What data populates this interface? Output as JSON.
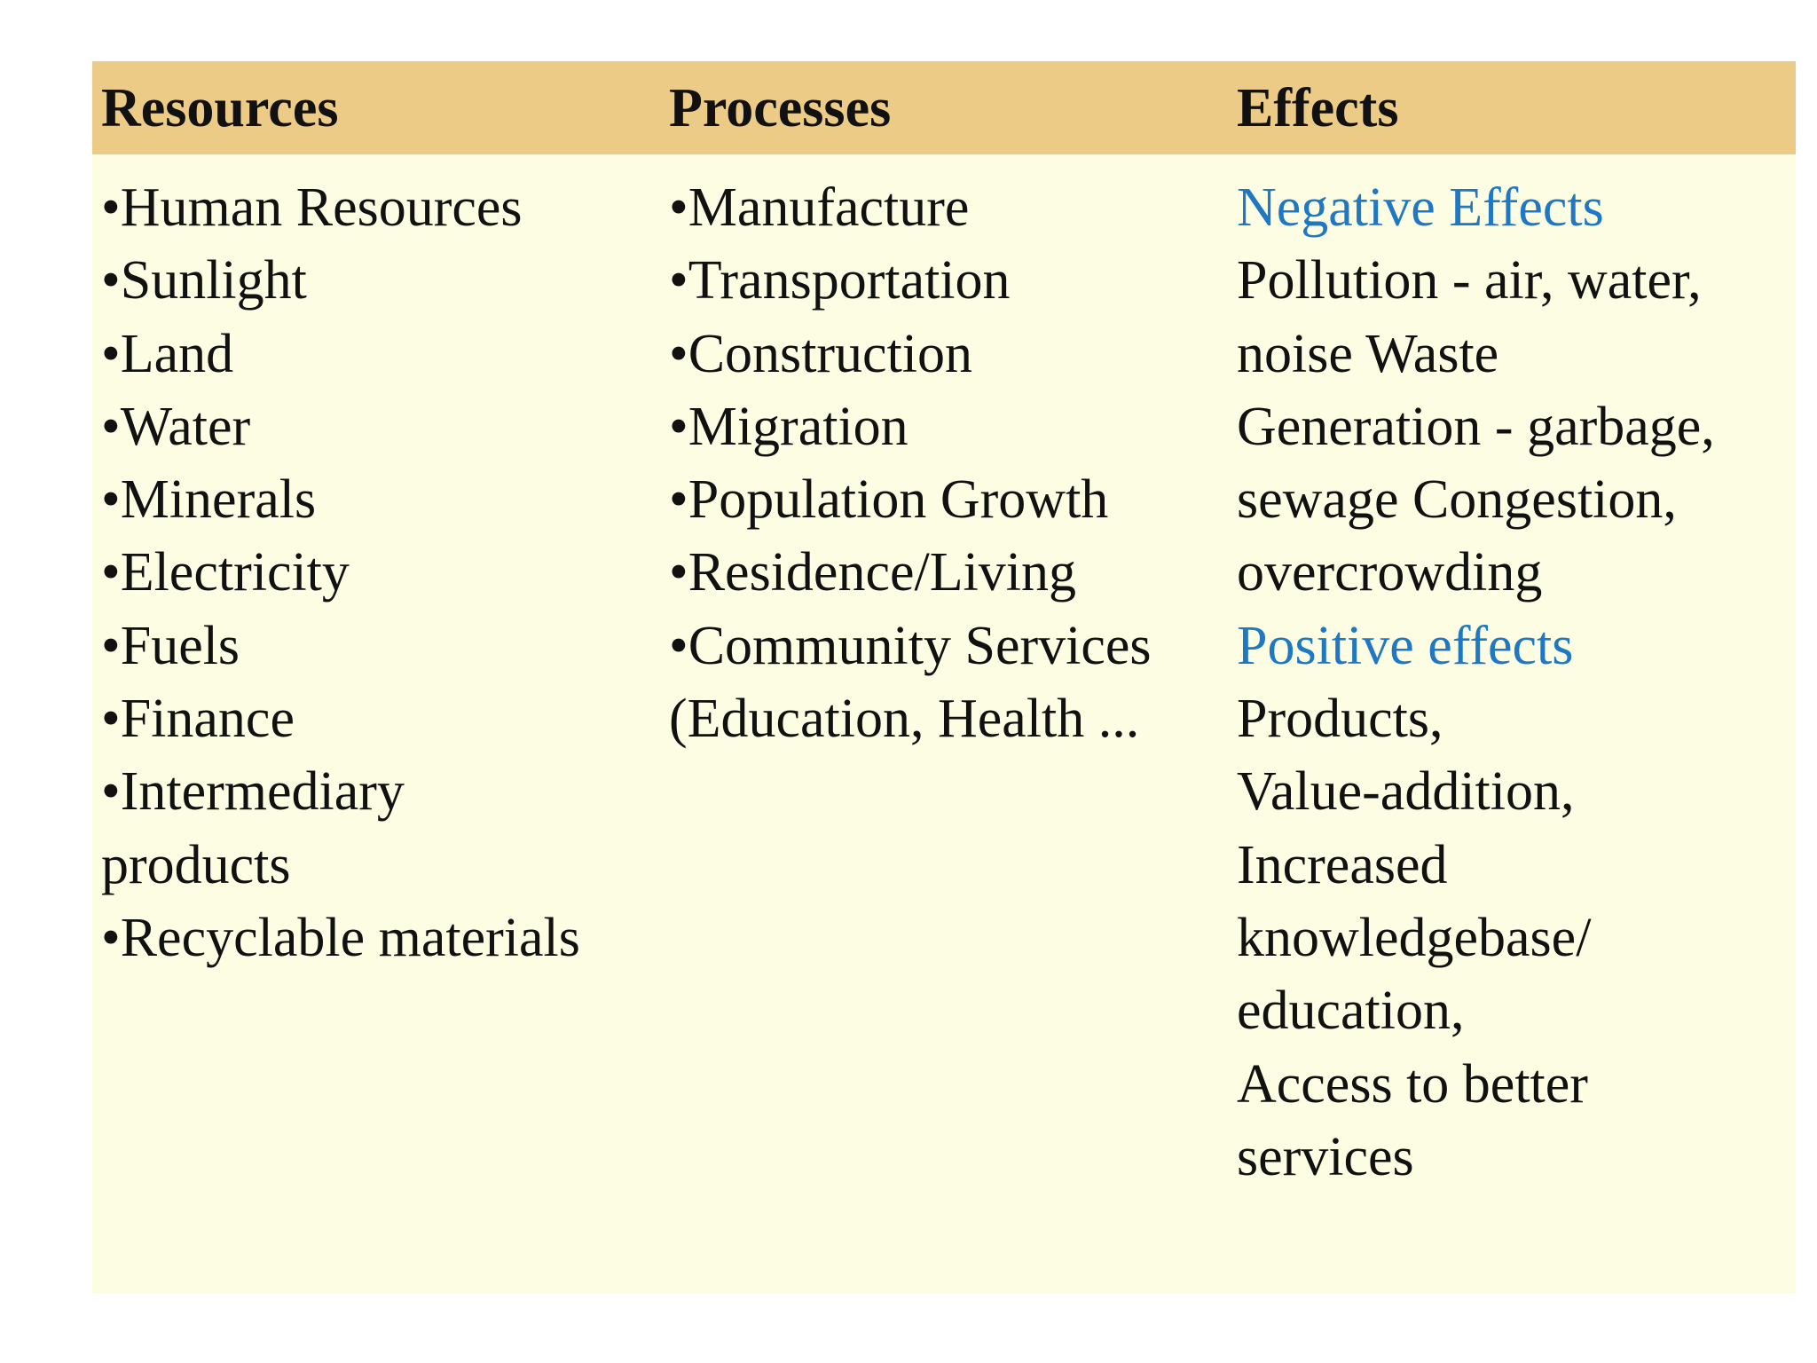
{
  "table": {
    "headers": {
      "resources": "Resources",
      "processes": "Processes",
      "effects": "Effects"
    },
    "resources": [
      "•Human Resources",
      "•Sunlight",
      "•Land",
      "•Water",
      "•Minerals",
      "•Electricity",
      "•Fuels",
      "•Finance",
      "•Intermediary",
      "products",
      "•Recyclable materials"
    ],
    "processes": [
      "•Manufacture",
      "•Transportation",
      "•Construction",
      "•Migration",
      "•Population Growth",
      "•Residence/Living",
      "•Community Services",
      "(Education, Health ..."
    ],
    "effects": {
      "negative_heading": "Negative Effects",
      "negative_lines": [
        "Pollution - air, water,",
        "noise Waste",
        "Generation - garbage,",
        "sewage Congestion,",
        "overcrowding"
      ],
      "positive_heading": "Positive effects",
      "positive_lines": [
        "Products,",
        "Value-addition,",
        "Increased",
        "knowledgebase/",
        "education,",
        "Access to better",
        "services"
      ]
    },
    "colors": {
      "header_bg": "#ebcb86",
      "body_bg": "#fdfde3",
      "heading_blue": "#1f78c1"
    }
  }
}
